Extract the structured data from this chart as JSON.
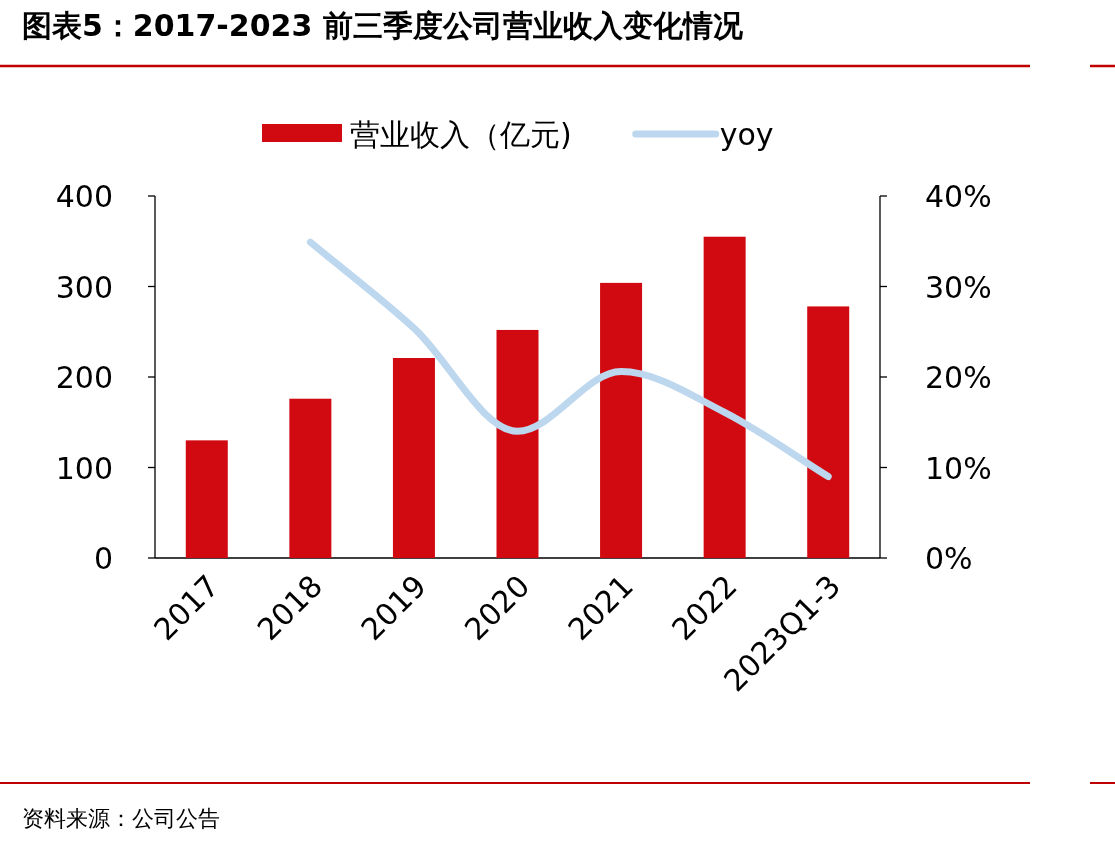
{
  "chart_data": {
    "type": "bar",
    "title": "图表5：2017-2023 前三季度公司营业收入变化情况",
    "categories": [
      "2017",
      "2018",
      "2019",
      "2020",
      "2021",
      "2022",
      "2023Q1-3"
    ],
    "series": [
      {
        "name": "营业收入（亿元)",
        "color": "#d10a11",
        "values": [
          130,
          176,
          221,
          252,
          304,
          355,
          278
        ]
      },
      {
        "name": "yoy",
        "type": "line",
        "axis": "y2",
        "color": "#bdd7ee",
        "line_style": "solid",
        "values": [
          null,
          34.9,
          25.4,
          14.0,
          20.6,
          16.1,
          9.0
        ]
      }
    ],
    "ylim": [
      0,
      400
    ],
    "yticks": [
      0,
      100,
      200,
      300,
      400
    ],
    "y2lim": [
      0,
      40
    ],
    "y2ticks": [
      {
        "value": 0,
        "label": "0%"
      },
      {
        "value": 10,
        "label": "10%"
      },
      {
        "value": 20,
        "label": "20%"
      },
      {
        "value": 30,
        "label": "30%"
      },
      {
        "value": 40,
        "label": "40%"
      }
    ],
    "grid": false,
    "legend": "top",
    "marker": "none",
    "annotations": [
      "资料来源：公司公告"
    ]
  }
}
